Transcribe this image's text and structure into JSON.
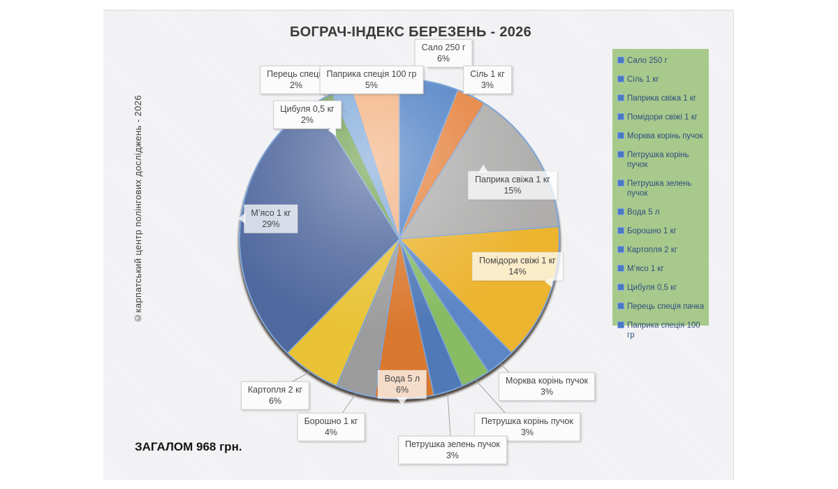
{
  "title": "БОГРАЧ-ІНДЕКС БЕРЕЗЕНЬ - 2026",
  "watermark": "©карпатський центр полінгових досліджень - 2026",
  "total_label": "ЗАГАЛОМ 968 грн.",
  "legend": {
    "background": "#a8c98c",
    "marker_color": "#4a78c2",
    "items": [
      "Сало 250 г",
      "Сіль 1 кг",
      "Паприка свіжа 1 кг",
      "Помідори свіжі 1 кг",
      "Морква корінь пучок",
      "Петрушка корінь пучок",
      "Петрушка зелень пучок",
      "Вода 5 л",
      "Борошно 1 кг",
      "Картопля 2 кг",
      "М’ясо 1 кг",
      "Цибуля 0,5 кг",
      "Перець спеція пачка",
      "Паприка спеція 100 гр"
    ]
  },
  "chart_data": {
    "type": "pie",
    "title": "БОГРАЧ-ІНДЕКС БЕРЕЗЕНЬ - 2026",
    "total_shown": "968 грн.",
    "unit": "%",
    "legend_position": "right",
    "start_angle_deg": 0,
    "direction": "clockwise",
    "categories": [
      "Сало 250 г",
      "Сіль 1 кг",
      "Паприка свіжа 1 кг",
      "Помідори свіжі 1 кг",
      "Морква корінь пучок",
      "Петрушка корінь пучок",
      "Петрушка зелень пучок",
      "Вода 5 л",
      "Борошно 1 кг",
      "Картопля 2 кг",
      "М’ясо 1 кг",
      "Цибуля 0,5 кг",
      "Перець спеція",
      "Паприка спеція 100 гр"
    ],
    "values": [
      6,
      3,
      15,
      14,
      3,
      3,
      3,
      6,
      4,
      6,
      29,
      2,
      2,
      5
    ],
    "colors": [
      "#4E80C4",
      "#E5823E",
      "#AFAEAD",
      "#ECB42F",
      "#5C86C6",
      "#88BB62",
      "#4F79B7",
      "#D9782F",
      "#9C9C9C",
      "#E9C235",
      "#50689E",
      "#6FA04E",
      "#7FA9D9",
      "#F3B07F"
    ],
    "slice_border_color": "#7EA6D8"
  }
}
